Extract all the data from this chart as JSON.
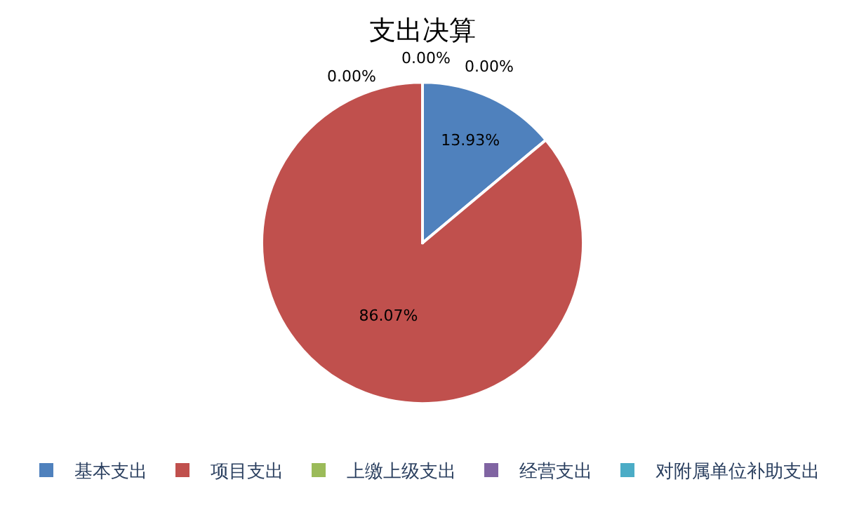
{
  "chart_data": {
    "type": "pie",
    "title": "支出决算",
    "categories": [
      "基本支出",
      "项目支出",
      "上缴上级支出",
      "经营支出",
      "对附属单位补助支出"
    ],
    "values": [
      13.93,
      86.07,
      0,
      0,
      0
    ],
    "colors": [
      "#4f81bd",
      "#c0504d",
      "#9bbb59",
      "#8064a2",
      "#4bacc6"
    ],
    "value_labels": [
      "13.93%",
      "86.07%",
      "0.00%",
      "0.00%",
      "0.00%"
    ],
    "legend": "bottom"
  }
}
